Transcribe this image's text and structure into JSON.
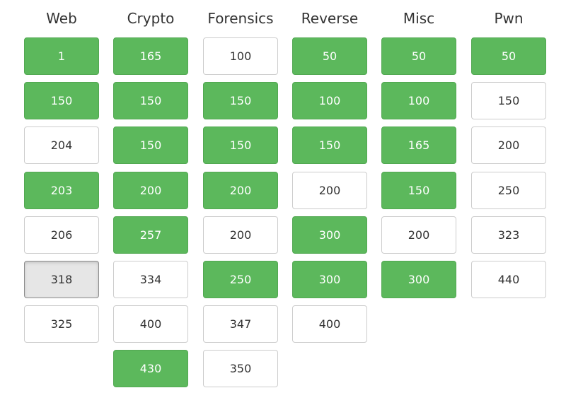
{
  "board": {
    "categories": [
      {
        "name": "Web",
        "challenges": [
          {
            "points": "1",
            "state": "solved"
          },
          {
            "points": "150",
            "state": "solved"
          },
          {
            "points": "204",
            "state": "open"
          },
          {
            "points": "203",
            "state": "solved"
          },
          {
            "points": "206",
            "state": "open"
          },
          {
            "points": "318",
            "state": "selected"
          },
          {
            "points": "325",
            "state": "open"
          }
        ]
      },
      {
        "name": "Crypto",
        "challenges": [
          {
            "points": "165",
            "state": "solved"
          },
          {
            "points": "150",
            "state": "solved"
          },
          {
            "points": "150",
            "state": "solved"
          },
          {
            "points": "200",
            "state": "solved"
          },
          {
            "points": "257",
            "state": "solved"
          },
          {
            "points": "334",
            "state": "open"
          },
          {
            "points": "400",
            "state": "open"
          },
          {
            "points": "430",
            "state": "solved"
          }
        ]
      },
      {
        "name": "Forensics",
        "challenges": [
          {
            "points": "100",
            "state": "open"
          },
          {
            "points": "150",
            "state": "solved"
          },
          {
            "points": "150",
            "state": "solved"
          },
          {
            "points": "200",
            "state": "solved"
          },
          {
            "points": "200",
            "state": "open"
          },
          {
            "points": "250",
            "state": "solved"
          },
          {
            "points": "347",
            "state": "open"
          },
          {
            "points": "350",
            "state": "open"
          }
        ]
      },
      {
        "name": "Reverse",
        "challenges": [
          {
            "points": "50",
            "state": "solved"
          },
          {
            "points": "100",
            "state": "solved"
          },
          {
            "points": "150",
            "state": "solved"
          },
          {
            "points": "200",
            "state": "open"
          },
          {
            "points": "300",
            "state": "solved"
          },
          {
            "points": "300",
            "state": "solved"
          },
          {
            "points": "400",
            "state": "open"
          }
        ]
      },
      {
        "name": "Misc",
        "challenges": [
          {
            "points": "50",
            "state": "solved"
          },
          {
            "points": "100",
            "state": "solved"
          },
          {
            "points": "165",
            "state": "solved"
          },
          {
            "points": "150",
            "state": "solved"
          },
          {
            "points": "200",
            "state": "open"
          },
          {
            "points": "300",
            "state": "solved"
          }
        ]
      },
      {
        "name": "Pwn",
        "challenges": [
          {
            "points": "50",
            "state": "solved"
          },
          {
            "points": "150",
            "state": "open"
          },
          {
            "points": "200",
            "state": "open"
          },
          {
            "points": "250",
            "state": "open"
          },
          {
            "points": "323",
            "state": "open"
          },
          {
            "points": "440",
            "state": "open"
          }
        ]
      }
    ]
  }
}
